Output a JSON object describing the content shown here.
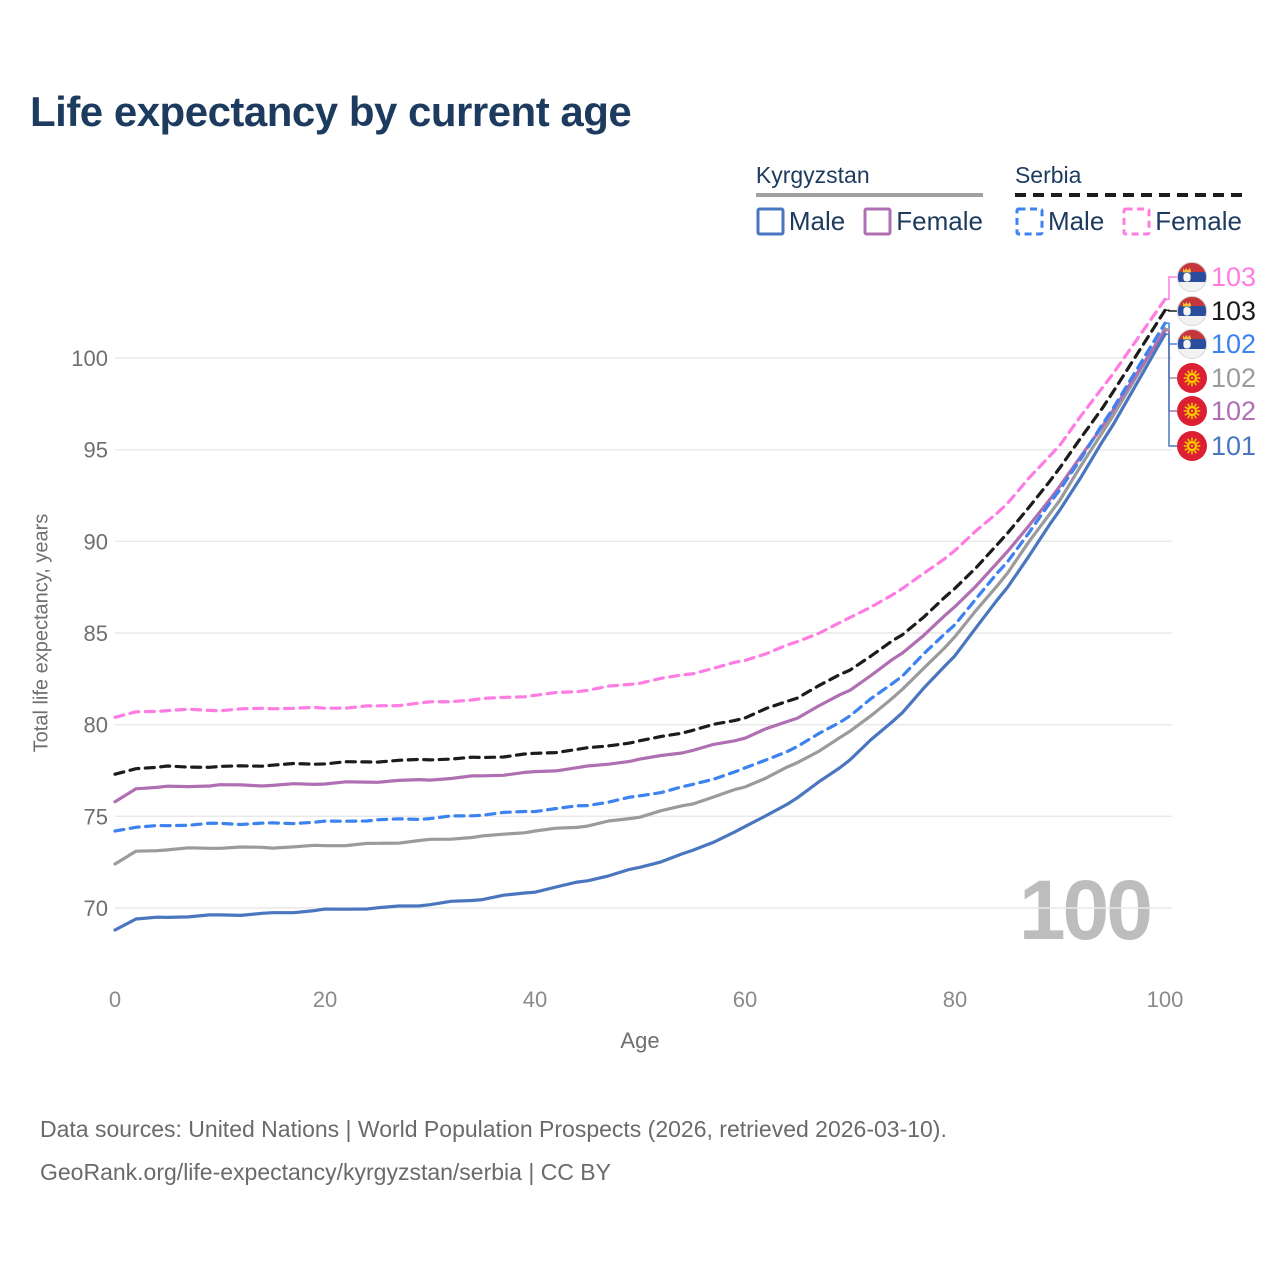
{
  "title": "Life expectancy by current age",
  "legend": {
    "groups": [
      {
        "country": "Kyrgyzstan",
        "line_style": "solid",
        "underline_color": "#a0a0a0",
        "items": [
          {
            "label": "Male",
            "color": "#4a76c0",
            "dashed": false
          },
          {
            "label": "Female",
            "color": "#b06fb2",
            "dashed": false
          }
        ]
      },
      {
        "country": "Serbia",
        "line_style": "dashed",
        "underline_color": "#1c1c1c",
        "items": [
          {
            "label": "Male",
            "color": "#3c82f0",
            "dashed": true
          },
          {
            "label": "Female",
            "color": "#ff7de2",
            "dashed": true
          }
        ]
      }
    ]
  },
  "chart_data": {
    "type": "line",
    "title": "Life expectancy by current age",
    "xlabel": "Age",
    "ylabel": "Total life expectancy, years",
    "x_ticks": [
      0,
      20,
      40,
      60,
      80,
      100
    ],
    "y_ticks": [
      70,
      75,
      80,
      85,
      90,
      95,
      100
    ],
    "xlim": [
      0,
      100
    ],
    "ylim": [
      68,
      104
    ],
    "grid": "horizontal",
    "watermark_age": "100",
    "ages": [
      0,
      2,
      5,
      10,
      15,
      20,
      25,
      30,
      35,
      40,
      45,
      50,
      55,
      60,
      65,
      70,
      75,
      80,
      85,
      90,
      95,
      100
    ],
    "series": [
      {
        "id": "serbia-female",
        "country": "Serbia",
        "sex": "Female",
        "color": "#ff7de2",
        "dashed": true,
        "flag": "serbia",
        "end_label": "103",
        "values": [
          80.4,
          80.7,
          80.8,
          80.8,
          80.9,
          80.9,
          81.0,
          81.2,
          81.4,
          81.6,
          81.9,
          82.3,
          82.8,
          83.5,
          84.5,
          85.8,
          87.4,
          89.5,
          92.1,
          95.3,
          99.1,
          103.2
        ]
      },
      {
        "id": "serbia-both",
        "country": "Serbia",
        "sex": "Both",
        "color": "#1c1c1c",
        "dashed": true,
        "flag": "serbia",
        "end_label": "103",
        "values": [
          77.3,
          77.6,
          77.7,
          77.7,
          77.8,
          77.9,
          78.0,
          78.1,
          78.2,
          78.4,
          78.7,
          79.1,
          79.7,
          80.4,
          81.5,
          83.0,
          84.9,
          87.4,
          90.4,
          94.0,
          98.1,
          102.6
        ]
      },
      {
        "id": "serbia-male",
        "country": "Serbia",
        "sex": "Male",
        "color": "#3c82f0",
        "dashed": true,
        "flag": "serbia",
        "end_label": "102",
        "values": [
          74.2,
          74.4,
          74.5,
          74.6,
          74.6,
          74.7,
          74.8,
          74.9,
          75.1,
          75.3,
          75.6,
          76.1,
          76.7,
          77.6,
          78.8,
          80.5,
          82.7,
          85.5,
          88.9,
          92.8,
          97.2,
          101.9
        ]
      },
      {
        "id": "kyrgyzstan-both",
        "country": "Kyrgyzstan",
        "sex": "Both",
        "color": "#9b9b9b",
        "dashed": false,
        "flag": "kyrgyzstan",
        "end_label": "102",
        "values": [
          72.4,
          73.1,
          73.2,
          73.3,
          73.3,
          73.4,
          73.5,
          73.7,
          73.9,
          74.2,
          74.5,
          75.0,
          75.7,
          76.6,
          77.9,
          79.6,
          81.9,
          84.8,
          88.3,
          92.3,
          96.8,
          101.6
        ]
      },
      {
        "id": "kyrgyzstan-female",
        "country": "Kyrgyzstan",
        "sex": "Female",
        "color": "#b06fb2",
        "dashed": false,
        "flag": "kyrgyzstan",
        "end_label": "102",
        "values": [
          75.8,
          76.5,
          76.6,
          76.7,
          76.7,
          76.8,
          76.9,
          77.0,
          77.2,
          77.4,
          77.7,
          78.1,
          78.6,
          79.3,
          80.4,
          81.9,
          83.9,
          86.4,
          89.4,
          93.0,
          97.1,
          101.5
        ]
      },
      {
        "id": "kyrgyzstan-male",
        "country": "Kyrgyzstan",
        "sex": "Male",
        "color": "#4a76c0",
        "dashed": false,
        "flag": "kyrgyzstan",
        "end_label": "101",
        "values": [
          68.8,
          69.4,
          69.5,
          69.6,
          69.7,
          69.9,
          70.0,
          70.2,
          70.5,
          70.9,
          71.5,
          72.2,
          73.1,
          74.4,
          76.0,
          78.1,
          80.7,
          83.8,
          87.5,
          91.7,
          96.3,
          101.3
        ]
      }
    ],
    "flag_colors": {
      "serbia": {
        "red": "#c5363d",
        "blue": "#2a4d9e",
        "white": "#f2f2f2",
        "crown": "#f0c23c"
      },
      "kyrgyzstan": {
        "red": "#dc1f32",
        "sun": "#f6c500"
      }
    }
  },
  "footer": {
    "line1": "Data sources: United Nations | World Population Prospects (2026, retrieved 2026-03-10).",
    "line2": "GeoRank.org/life-expectancy/kyrgyzstan/serbia | CC BY"
  }
}
